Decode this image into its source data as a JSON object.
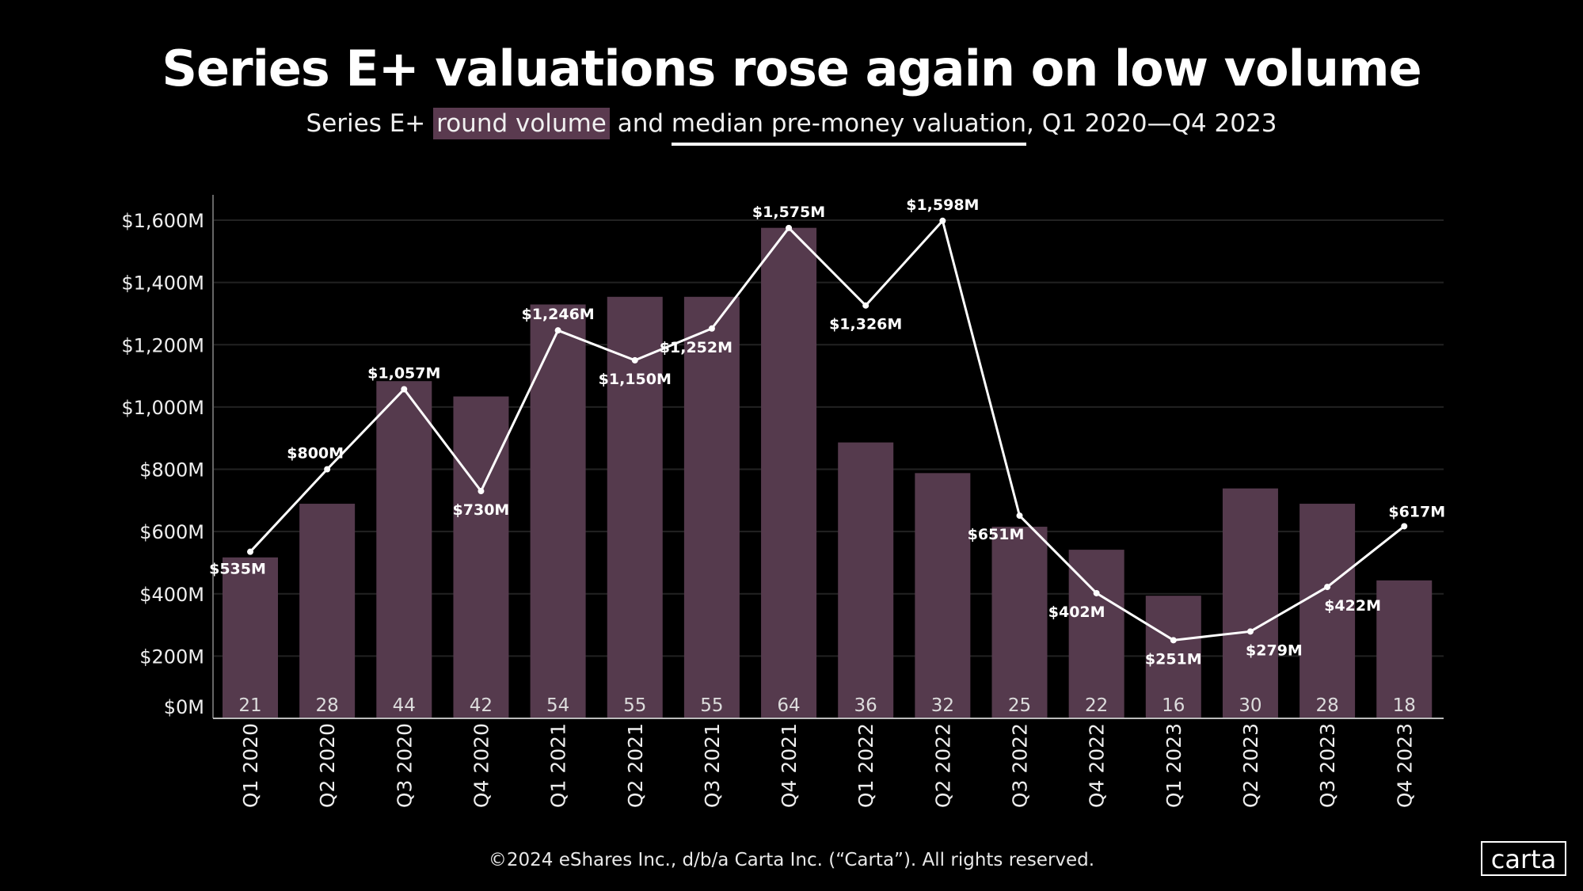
{
  "title": "Series E+ valuations rose again on low volume",
  "subtitle": {
    "part1": "Series E+ ",
    "highlight_volume": "round volume",
    "part2": " and ",
    "underline_valuation": "median pre-money valuation",
    "part3": ", Q1 2020—Q4 2023"
  },
  "footer": "©2024 eShares Inc., d/b/a Carta Inc. (“Carta”). All rights reserved.",
  "logo": "carta",
  "colors": {
    "background": "#000000",
    "bar": "#553a4d",
    "line": "#ffffff",
    "grid": "#222222"
  },
  "chart_data": {
    "type": "bar+line",
    "categories": [
      "Q1 2020",
      "Q2 2020",
      "Q3 2020",
      "Q4 2020",
      "Q1 2021",
      "Q2 2021",
      "Q3 2021",
      "Q4 2021",
      "Q1 2022",
      "Q2 2022",
      "Q3 2022",
      "Q4 2022",
      "Q1 2023",
      "Q2 2023",
      "Q3 2023",
      "Q4 2023"
    ],
    "series": [
      {
        "type": "bar",
        "values": [
          21,
          28,
          44,
          42,
          54,
          55,
          55,
          64,
          36,
          32,
          25,
          22,
          16,
          30,
          28,
          18
        ]
      },
      {
        "type": "line",
        "values": [
          535,
          800,
          1057,
          730,
          1246,
          1150,
          1252,
          1575,
          1326,
          1598,
          651,
          402,
          251,
          279,
          422,
          617
        ],
        "labels": [
          "$535M",
          "$800M",
          "$1,057M",
          "$730M",
          "$1,246M",
          "$1,150M",
          "$1,252M",
          "$1,575M",
          "$1,326M",
          "$1,598M",
          "$651M",
          "$402M",
          "$251M",
          "$279M",
          "$422M",
          "$617M"
        ]
      }
    ],
    "y_ticks": [
      "$0M",
      "$200M",
      "$400M",
      "$600M",
      "$800M",
      "$1,000M",
      "$1,200M",
      "$1,400M",
      "$1,600M"
    ],
    "ylim": [
      0,
      1600
    ],
    "volume_ylim": [
      0,
      65
    ],
    "grid": true
  }
}
